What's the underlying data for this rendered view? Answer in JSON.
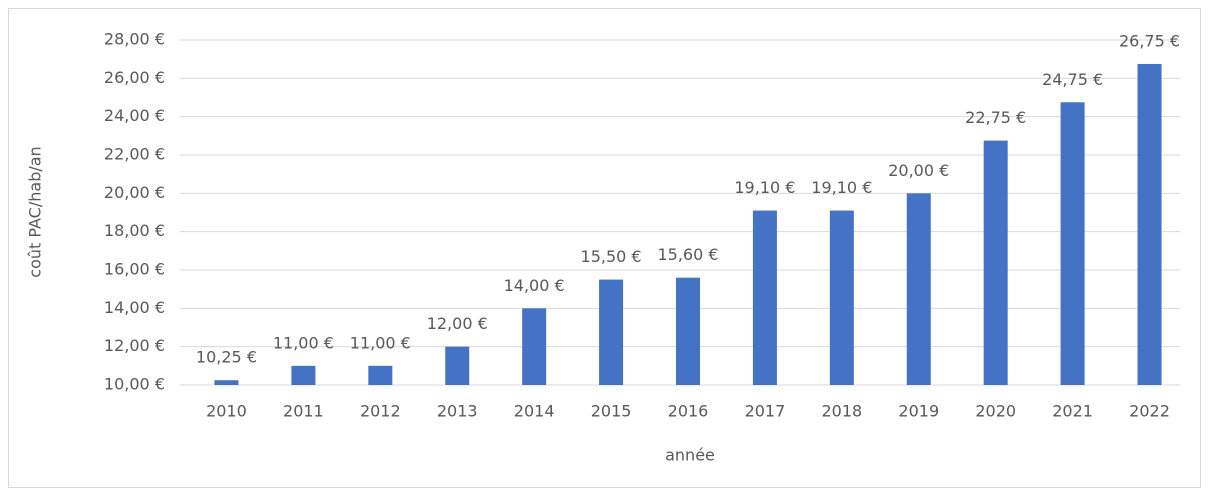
{
  "chart_data": {
    "type": "bar",
    "x_label": "année",
    "y_label": "coût PAC/hab/an",
    "categories": [
      "2010",
      "2011",
      "2012",
      "2013",
      "2014",
      "2015",
      "2016",
      "2017",
      "2018",
      "2019",
      "2020",
      "2021",
      "2022"
    ],
    "values": [
      10.25,
      11,
      11,
      12,
      14,
      15.5,
      15.6,
      19.1,
      19.1,
      20,
      22.75,
      24.75,
      26.75
    ],
    "value_labels": [
      "10,25 €",
      "11,00 €",
      "11,00 €",
      "12,00 €",
      "14,00 €",
      "15,50 €",
      "15,60 €",
      "19,10 €",
      "19,10 €",
      "20,00 €",
      "22,75 €",
      "24,75 €",
      "26,75 €"
    ],
    "color": "#4472c4",
    "ylim": [
      10,
      28
    ],
    "yticks": [
      {
        "value": 10,
        "label": "10,00 €"
      },
      {
        "value": 12,
        "label": "12,00 €"
      },
      {
        "value": 14,
        "label": "14,00 €"
      },
      {
        "value": 16,
        "label": "16,00 €"
      },
      {
        "value": 18,
        "label": "18,00 €"
      },
      {
        "value": 20,
        "label": "20,00 €"
      },
      {
        "value": 22,
        "label": "22,00 €"
      },
      {
        "value": 24,
        "label": "24,00 €"
      },
      {
        "value": 26,
        "label": "26,00 €"
      },
      {
        "value": 28,
        "label": "28,00 €"
      }
    ],
    "grid": true
  }
}
